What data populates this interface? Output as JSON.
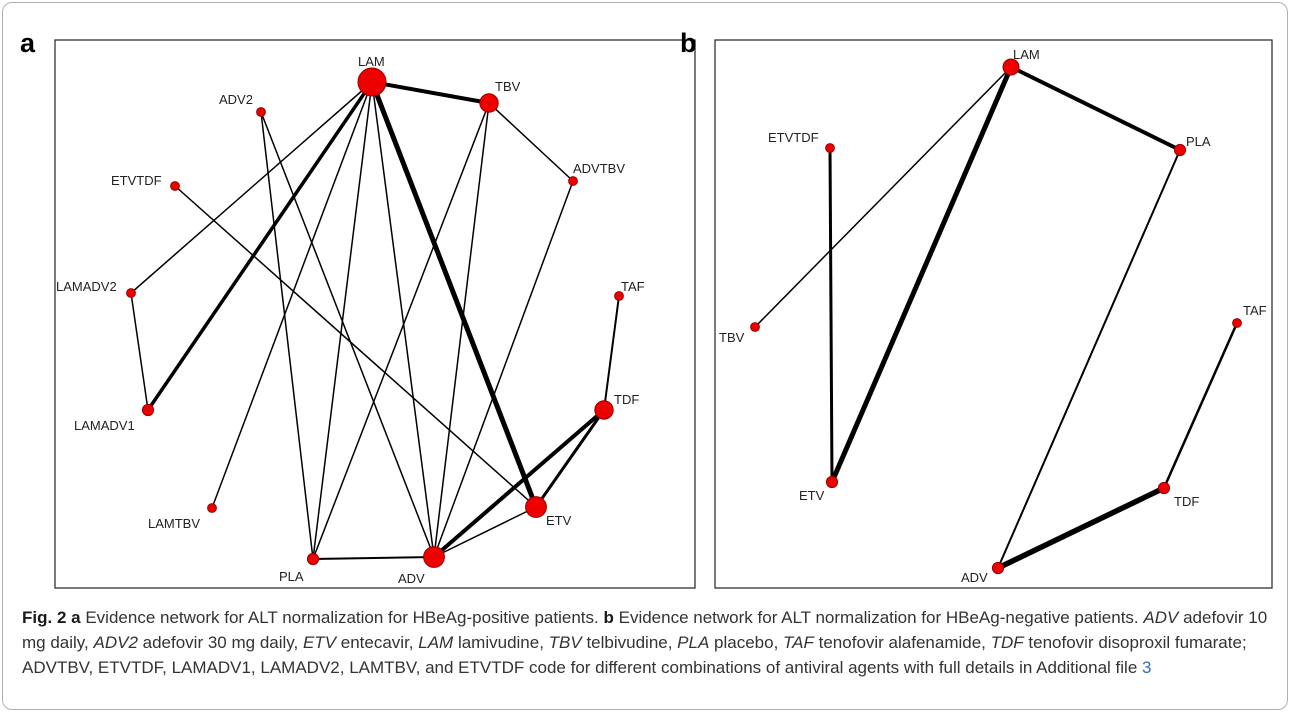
{
  "panels": [
    {
      "letter": "a",
      "nodes": [
        {
          "id": "LAM",
          "size": 5
        },
        {
          "id": "TBV",
          "size": 3
        },
        {
          "id": "ADV2",
          "size": 1
        },
        {
          "id": "ADVTBV",
          "size": 1
        },
        {
          "id": "ETVTDF",
          "size": 1
        },
        {
          "id": "LAMADV2",
          "size": 1
        },
        {
          "id": "TAF",
          "size": 1
        },
        {
          "id": "LAMADV1",
          "size": 1.5
        },
        {
          "id": "TDF",
          "size": 3
        },
        {
          "id": "LAMTBV",
          "size": 1
        },
        {
          "id": "ETV",
          "size": 3.5
        },
        {
          "id": "PLA",
          "size": 1.5
        },
        {
          "id": "ADV",
          "size": 3.5
        }
      ],
      "edges": [
        {
          "from": "LAM",
          "to": "TBV",
          "weight": 4
        },
        {
          "from": "LAM",
          "to": "ETV",
          "weight": 5
        },
        {
          "from": "LAM",
          "to": "LAMADV1",
          "weight": 3.5
        },
        {
          "from": "LAM",
          "to": "LAMADV2",
          "weight": 1.5
        },
        {
          "from": "LAM",
          "to": "LAMTBV",
          "weight": 1.5
        },
        {
          "from": "LAM",
          "to": "PLA",
          "weight": 1.5
        },
        {
          "from": "LAM",
          "to": "ADV",
          "weight": 1.5
        },
        {
          "from": "TBV",
          "to": "ADVTBV",
          "weight": 1.5
        },
        {
          "from": "TBV",
          "to": "ADV",
          "weight": 1.5
        },
        {
          "from": "TBV",
          "to": "PLA",
          "weight": 1.5
        },
        {
          "from": "ADV2",
          "to": "PLA",
          "weight": 1.5
        },
        {
          "from": "ADV2",
          "to": "ADV",
          "weight": 1.5
        },
        {
          "from": "ETVTDF",
          "to": "ETV",
          "weight": 1.5
        },
        {
          "from": "ADVTBV",
          "to": "ADV",
          "weight": 1.5
        },
        {
          "from": "LAMADV2",
          "to": "LAMADV1",
          "weight": 1.5
        },
        {
          "from": "TAF",
          "to": "TDF",
          "weight": 2
        },
        {
          "from": "TDF",
          "to": "ETV",
          "weight": 3
        },
        {
          "from": "TDF",
          "to": "ADV",
          "weight": 4
        },
        {
          "from": "ETV",
          "to": "ADV",
          "weight": 1.5
        },
        {
          "from": "PLA",
          "to": "ADV",
          "weight": 2
        }
      ]
    },
    {
      "letter": "b",
      "nodes": [
        {
          "id": "LAM",
          "size": 2.5
        },
        {
          "id": "PLA",
          "size": 1.5
        },
        {
          "id": "ETVTDF",
          "size": 1
        },
        {
          "id": "TBV",
          "size": 1
        },
        {
          "id": "TAF",
          "size": 1
        },
        {
          "id": "TDF",
          "size": 1.5
        },
        {
          "id": "ETV",
          "size": 1.5
        },
        {
          "id": "ADV",
          "size": 1.5
        }
      ],
      "edges": [
        {
          "from": "LAM",
          "to": "PLA",
          "weight": 4
        },
        {
          "from": "LAM",
          "to": "ETV",
          "weight": 5
        },
        {
          "from": "LAM",
          "to": "TBV",
          "weight": 1.5
        },
        {
          "from": "ETVTDF",
          "to": "ETV",
          "weight": 3
        },
        {
          "from": "PLA",
          "to": "ADV",
          "weight": 2
        },
        {
          "from": "TAF",
          "to": "TDF",
          "weight": 2.5
        },
        {
          "from": "TDF",
          "to": "ADV",
          "weight": 5.5
        }
      ]
    }
  ],
  "caption": {
    "label": "Fig. 2",
    "a_letter": "a",
    "a_text": "Evidence network for ALT normalization for HBeAg-positive patients.",
    "b_letter": "b",
    "b_text": "Evidence network for ALT normalization for HBeAg-negative patients.",
    "abbreviations": [
      {
        "abbr": "ADV",
        "desc": "adefovir 10 mg daily,"
      },
      {
        "abbr": "ADV2",
        "desc": "adefovir 30 mg daily,"
      },
      {
        "abbr": "ETV",
        "desc": "entecavir,"
      },
      {
        "abbr": "LAM",
        "desc": "lamivudine,"
      },
      {
        "abbr": "TBV",
        "desc": "telbivudine,"
      },
      {
        "abbr": "PLA",
        "desc": "placebo,"
      },
      {
        "abbr": "TAF",
        "desc": "tenofovir alafenamide,"
      },
      {
        "abbr": "TDF",
        "desc": "tenofovir disoproxil fumarate;"
      }
    ],
    "tail_text": "ADVTBV, ETVTDF, LAMADV1, LAMADV2, LAMTBV, and ETVTDF code for different combinations of antiviral agents with full details in Additional file",
    "file_link": "3"
  },
  "colors": {
    "node_fill": "#ee0000",
    "edge": "#000000",
    "link": "#2a6fb5"
  }
}
